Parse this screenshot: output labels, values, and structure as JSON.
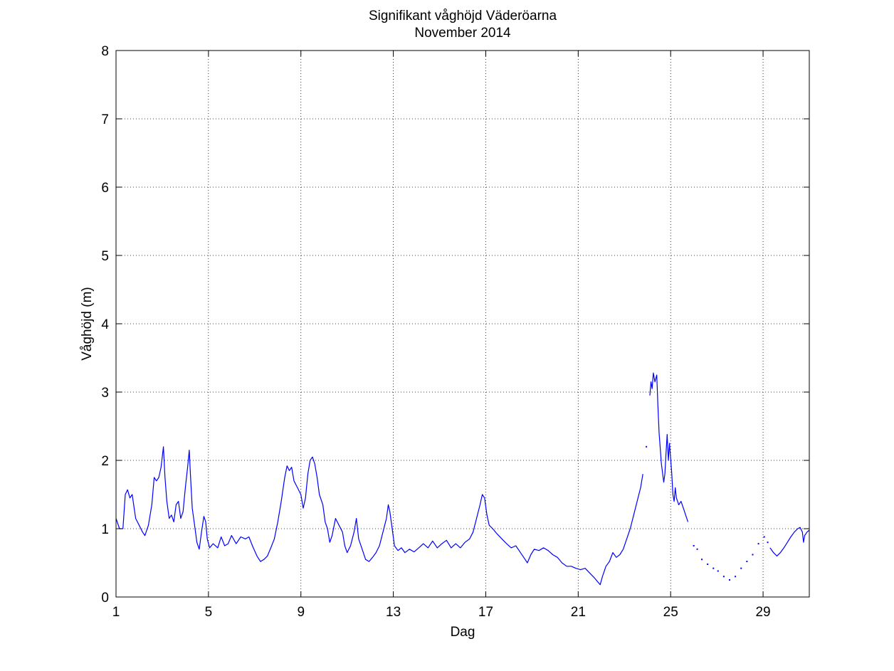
{
  "chart_data": {
    "type": "line",
    "title": "Signifikant våghöjd Väderöarna",
    "subtitle": "November 2014",
    "xlabel": "Dag",
    "ylabel": "Våghöjd (m)",
    "xlim": [
      1,
      31
    ],
    "ylim": [
      0,
      8
    ],
    "xticks": [
      1,
      5,
      9,
      13,
      17,
      21,
      25,
      29
    ],
    "yticks": [
      0,
      1,
      2,
      3,
      4,
      5,
      6,
      7,
      8
    ],
    "grid": true,
    "line_color": "#0000ff",
    "series": [
      {
        "segments": [
          [
            [
              1.0,
              1.15
            ],
            [
              1.15,
              1.0
            ],
            [
              1.3,
              1.0
            ],
            [
              1.4,
              1.5
            ],
            [
              1.5,
              1.57
            ],
            [
              1.6,
              1.45
            ],
            [
              1.7,
              1.5
            ],
            [
              1.85,
              1.15
            ],
            [
              2.0,
              1.05
            ],
            [
              2.15,
              0.95
            ],
            [
              2.25,
              0.9
            ],
            [
              2.4,
              1.05
            ],
            [
              2.55,
              1.35
            ],
            [
              2.65,
              1.75
            ],
            [
              2.75,
              1.7
            ],
            [
              2.85,
              1.75
            ],
            [
              2.95,
              1.9
            ],
            [
              3.05,
              2.2
            ],
            [
              3.12,
              1.75
            ],
            [
              3.2,
              1.4
            ],
            [
              3.3,
              1.15
            ],
            [
              3.4,
              1.2
            ],
            [
              3.5,
              1.1
            ],
            [
              3.6,
              1.35
            ],
            [
              3.7,
              1.4
            ],
            [
              3.8,
              1.15
            ],
            [
              3.9,
              1.25
            ],
            [
              4.0,
              1.6
            ],
            [
              4.1,
              1.9
            ],
            [
              4.17,
              2.15
            ],
            [
              4.22,
              1.8
            ],
            [
              4.3,
              1.3
            ],
            [
              4.4,
              1.05
            ],
            [
              4.5,
              0.8
            ],
            [
              4.6,
              0.7
            ],
            [
              4.7,
              0.95
            ],
            [
              4.8,
              1.18
            ],
            [
              4.88,
              1.1
            ],
            [
              4.95,
              0.85
            ],
            [
              5.05,
              0.72
            ],
            [
              5.2,
              0.78
            ],
            [
              5.4,
              0.72
            ],
            [
              5.55,
              0.88
            ],
            [
              5.7,
              0.75
            ],
            [
              5.85,
              0.78
            ],
            [
              6.0,
              0.9
            ],
            [
              6.2,
              0.78
            ],
            [
              6.4,
              0.88
            ],
            [
              6.6,
              0.85
            ],
            [
              6.75,
              0.88
            ],
            [
              6.9,
              0.75
            ],
            [
              7.1,
              0.6
            ],
            [
              7.25,
              0.52
            ],
            [
              7.4,
              0.55
            ],
            [
              7.55,
              0.6
            ],
            [
              7.7,
              0.72
            ],
            [
              7.85,
              0.85
            ],
            [
              8.0,
              1.1
            ],
            [
              8.15,
              1.4
            ],
            [
              8.3,
              1.75
            ],
            [
              8.4,
              1.92
            ],
            [
              8.5,
              1.85
            ],
            [
              8.6,
              1.9
            ],
            [
              8.7,
              1.7
            ],
            [
              8.85,
              1.6
            ],
            [
              9.0,
              1.5
            ],
            [
              9.1,
              1.3
            ],
            [
              9.2,
              1.45
            ],
            [
              9.3,
              1.8
            ],
            [
              9.4,
              2.0
            ],
            [
              9.5,
              2.05
            ],
            [
              9.6,
              1.95
            ],
            [
              9.7,
              1.75
            ],
            [
              9.8,
              1.5
            ],
            [
              9.95,
              1.35
            ],
            [
              10.05,
              1.1
            ],
            [
              10.15,
              1.0
            ],
            [
              10.25,
              0.8
            ],
            [
              10.35,
              0.9
            ],
            [
              10.5,
              1.15
            ],
            [
              10.65,
              1.05
            ],
            [
              10.8,
              0.95
            ],
            [
              10.9,
              0.75
            ],
            [
              11.0,
              0.65
            ],
            [
              11.15,
              0.75
            ],
            [
              11.3,
              0.95
            ],
            [
              11.4,
              1.15
            ],
            [
              11.5,
              0.85
            ],
            [
              11.65,
              0.7
            ],
            [
              11.8,
              0.55
            ],
            [
              11.95,
              0.52
            ],
            [
              12.1,
              0.58
            ],
            [
              12.25,
              0.65
            ],
            [
              12.4,
              0.75
            ],
            [
              12.55,
              0.95
            ],
            [
              12.7,
              1.15
            ],
            [
              12.78,
              1.35
            ],
            [
              12.85,
              1.25
            ],
            [
              12.95,
              1.0
            ],
            [
              13.05,
              0.75
            ],
            [
              13.2,
              0.68
            ],
            [
              13.35,
              0.72
            ],
            [
              13.5,
              0.65
            ],
            [
              13.7,
              0.7
            ],
            [
              13.9,
              0.66
            ],
            [
              14.1,
              0.72
            ],
            [
              14.3,
              0.78
            ],
            [
              14.5,
              0.72
            ],
            [
              14.7,
              0.82
            ],
            [
              14.9,
              0.72
            ],
            [
              15.1,
              0.78
            ],
            [
              15.3,
              0.83
            ],
            [
              15.5,
              0.72
            ],
            [
              15.7,
              0.78
            ],
            [
              15.9,
              0.72
            ],
            [
              16.1,
              0.8
            ],
            [
              16.3,
              0.85
            ],
            [
              16.45,
              0.95
            ],
            [
              16.6,
              1.15
            ],
            [
              16.75,
              1.35
            ],
            [
              16.85,
              1.5
            ],
            [
              16.95,
              1.45
            ],
            [
              17.05,
              1.2
            ],
            [
              17.15,
              1.05
            ],
            [
              17.3,
              1.0
            ],
            [
              17.5,
              0.92
            ],
            [
              17.7,
              0.85
            ],
            [
              17.9,
              0.78
            ],
            [
              18.1,
              0.72
            ],
            [
              18.3,
              0.75
            ],
            [
              18.5,
              0.65
            ],
            [
              18.7,
              0.55
            ],
            [
              18.8,
              0.5
            ],
            [
              18.95,
              0.62
            ],
            [
              19.1,
              0.7
            ],
            [
              19.3,
              0.68
            ],
            [
              19.5,
              0.72
            ],
            [
              19.7,
              0.68
            ],
            [
              19.9,
              0.62
            ],
            [
              20.1,
              0.58
            ],
            [
              20.3,
              0.5
            ],
            [
              20.5,
              0.45
            ],
            [
              20.7,
              0.45
            ],
            [
              20.9,
              0.42
            ],
            [
              21.1,
              0.4
            ],
            [
              21.3,
              0.42
            ],
            [
              21.5,
              0.35
            ],
            [
              21.7,
              0.28
            ],
            [
              21.85,
              0.22
            ],
            [
              21.95,
              0.18
            ],
            [
              22.05,
              0.3
            ],
            [
              22.2,
              0.45
            ],
            [
              22.35,
              0.52
            ],
            [
              22.5,
              0.65
            ],
            [
              22.65,
              0.58
            ],
            [
              22.8,
              0.62
            ],
            [
              22.95,
              0.7
            ],
            [
              23.1,
              0.85
            ],
            [
              23.25,
              1.0
            ],
            [
              23.4,
              1.2
            ],
            [
              23.55,
              1.4
            ],
            [
              23.7,
              1.6
            ],
            [
              23.8,
              1.8
            ]
          ],
          [
            [
              24.1,
              2.95
            ],
            [
              24.15,
              3.15
            ],
            [
              24.2,
              3.05
            ],
            [
              24.25,
              3.28
            ],
            [
              24.32,
              3.15
            ],
            [
              24.4,
              3.25
            ],
            [
              24.45,
              2.8
            ],
            [
              24.5,
              2.4
            ],
            [
              24.6,
              1.95
            ],
            [
              24.7,
              1.68
            ],
            [
              24.75,
              1.8
            ],
            [
              24.8,
              2.1
            ],
            [
              24.85,
              2.38
            ],
            [
              24.9,
              2.0
            ],
            [
              24.95,
              2.25
            ],
            [
              25.05,
              1.8
            ],
            [
              25.1,
              1.5
            ],
            [
              25.15,
              1.4
            ],
            [
              25.2,
              1.6
            ],
            [
              25.25,
              1.45
            ],
            [
              25.35,
              1.35
            ],
            [
              25.45,
              1.4
            ],
            [
              25.55,
              1.3
            ],
            [
              25.65,
              1.2
            ],
            [
              25.75,
              1.1
            ]
          ]
        ],
        "points": [
          [
            23.95,
            2.2
          ],
          [
            26.0,
            0.75
          ],
          [
            26.15,
            0.7
          ],
          [
            26.35,
            0.55
          ],
          [
            26.6,
            0.48
          ],
          [
            26.85,
            0.42
          ],
          [
            27.05,
            0.38
          ],
          [
            27.3,
            0.3
          ],
          [
            27.55,
            0.25
          ],
          [
            27.8,
            0.3
          ],
          [
            28.05,
            0.42
          ],
          [
            28.3,
            0.52
          ],
          [
            28.55,
            0.62
          ],
          [
            28.8,
            0.78
          ],
          [
            29.05,
            0.88
          ],
          [
            29.2,
            0.8
          ]
        ],
        "tail_segment": [
          [
            29.3,
            0.72
          ],
          [
            29.45,
            0.65
          ],
          [
            29.6,
            0.6
          ],
          [
            29.75,
            0.65
          ],
          [
            29.9,
            0.72
          ],
          [
            30.05,
            0.8
          ],
          [
            30.2,
            0.88
          ],
          [
            30.35,
            0.95
          ],
          [
            30.5,
            1.0
          ],
          [
            30.6,
            1.02
          ],
          [
            30.7,
            0.95
          ],
          [
            30.75,
            0.8
          ],
          [
            30.8,
            0.9
          ],
          [
            30.9,
            0.95
          ],
          [
            31.0,
            0.98
          ]
        ]
      }
    ]
  }
}
